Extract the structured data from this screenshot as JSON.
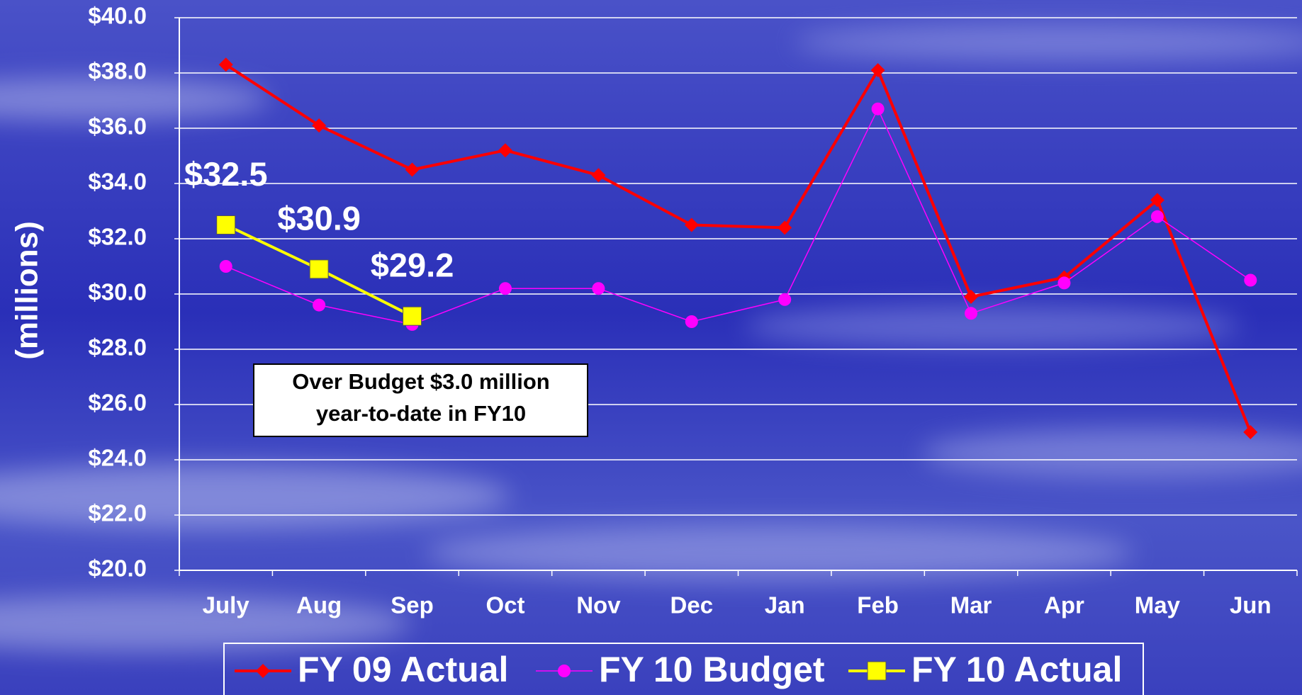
{
  "chart_data": {
    "type": "line",
    "y_label": "(millions)",
    "categories": [
      "July",
      "Aug",
      "Sep",
      "Oct",
      "Nov",
      "Dec",
      "Jan",
      "Feb",
      "Mar",
      "Apr",
      "May",
      "Jun"
    ],
    "series": [
      {
        "name": "FY 09 Actual",
        "color": "#ff0000",
        "marker": "diamond",
        "values": [
          38.3,
          36.1,
          34.5,
          35.2,
          34.3,
          32.5,
          32.4,
          38.1,
          29.9,
          30.6,
          33.4,
          25.0
        ]
      },
      {
        "name": "FY 10 Budget",
        "color": "#ff00ff",
        "marker": "circle",
        "values": [
          31.0,
          29.6,
          28.9,
          30.2,
          30.2,
          29.0,
          29.8,
          36.7,
          29.3,
          30.4,
          32.8,
          30.5
        ]
      },
      {
        "name": "FY 10 Actual",
        "color": "#ffff00",
        "marker": "square",
        "values": [
          32.5,
          30.9,
          29.2,
          null,
          null,
          null,
          null,
          null,
          null,
          null,
          null,
          null
        ],
        "value_labels": [
          "$32.5",
          "$30.9",
          "$29.2",
          null,
          null,
          null,
          null,
          null,
          null,
          null,
          null,
          null
        ]
      }
    ],
    "ylim": [
      20,
      40
    ],
    "yticks": [
      {
        "value": 20,
        "label": "$20.0"
      },
      {
        "value": 22,
        "label": "$22.0"
      },
      {
        "value": 24,
        "label": "$24.0"
      },
      {
        "value": 26,
        "label": "$26.0"
      },
      {
        "value": 28,
        "label": "$28.0"
      },
      {
        "value": 30,
        "label": "$30.0"
      },
      {
        "value": 32,
        "label": "$32.0"
      },
      {
        "value": 34,
        "label": "$34.0"
      },
      {
        "value": 36,
        "label": "$36.0"
      },
      {
        "value": 38,
        "label": "$38.0"
      },
      {
        "value": 40,
        "label": "$40.0"
      }
    ],
    "grid": true,
    "annotation": [
      "Over Budget $3.0 million",
      "year-to-date in FY10"
    ],
    "legend": "bottom"
  }
}
